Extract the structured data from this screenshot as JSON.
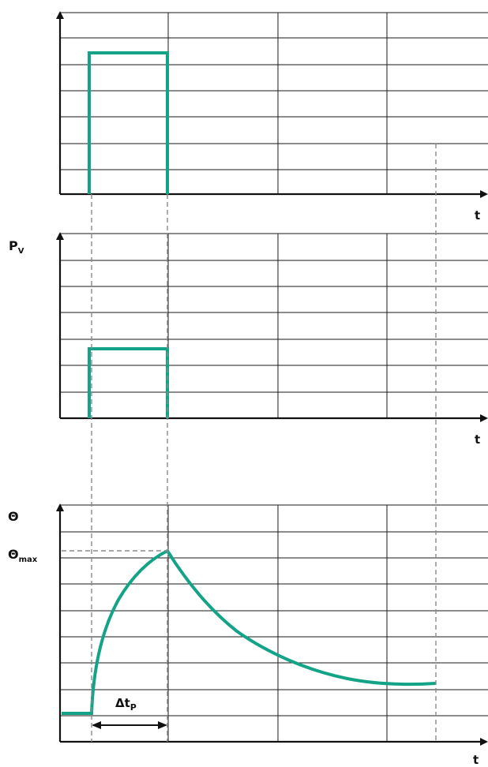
{
  "colors": {
    "trace": "#13a386",
    "grid": "#1a1a1a",
    "dashed": "#8a8a8a"
  },
  "panels": {
    "top": {
      "x_axis_label": "t"
    },
    "middle": {
      "y_axis_label_main": "P",
      "y_axis_label_sub": "V",
      "x_axis_label": "t"
    },
    "bottom": {
      "y_axis_label": "Θ",
      "max_label_main": "Θ",
      "max_label_sub": "max",
      "x_axis_label": "t",
      "pulse_label_main": "Δt",
      "pulse_label_sub": "P"
    }
  }
}
